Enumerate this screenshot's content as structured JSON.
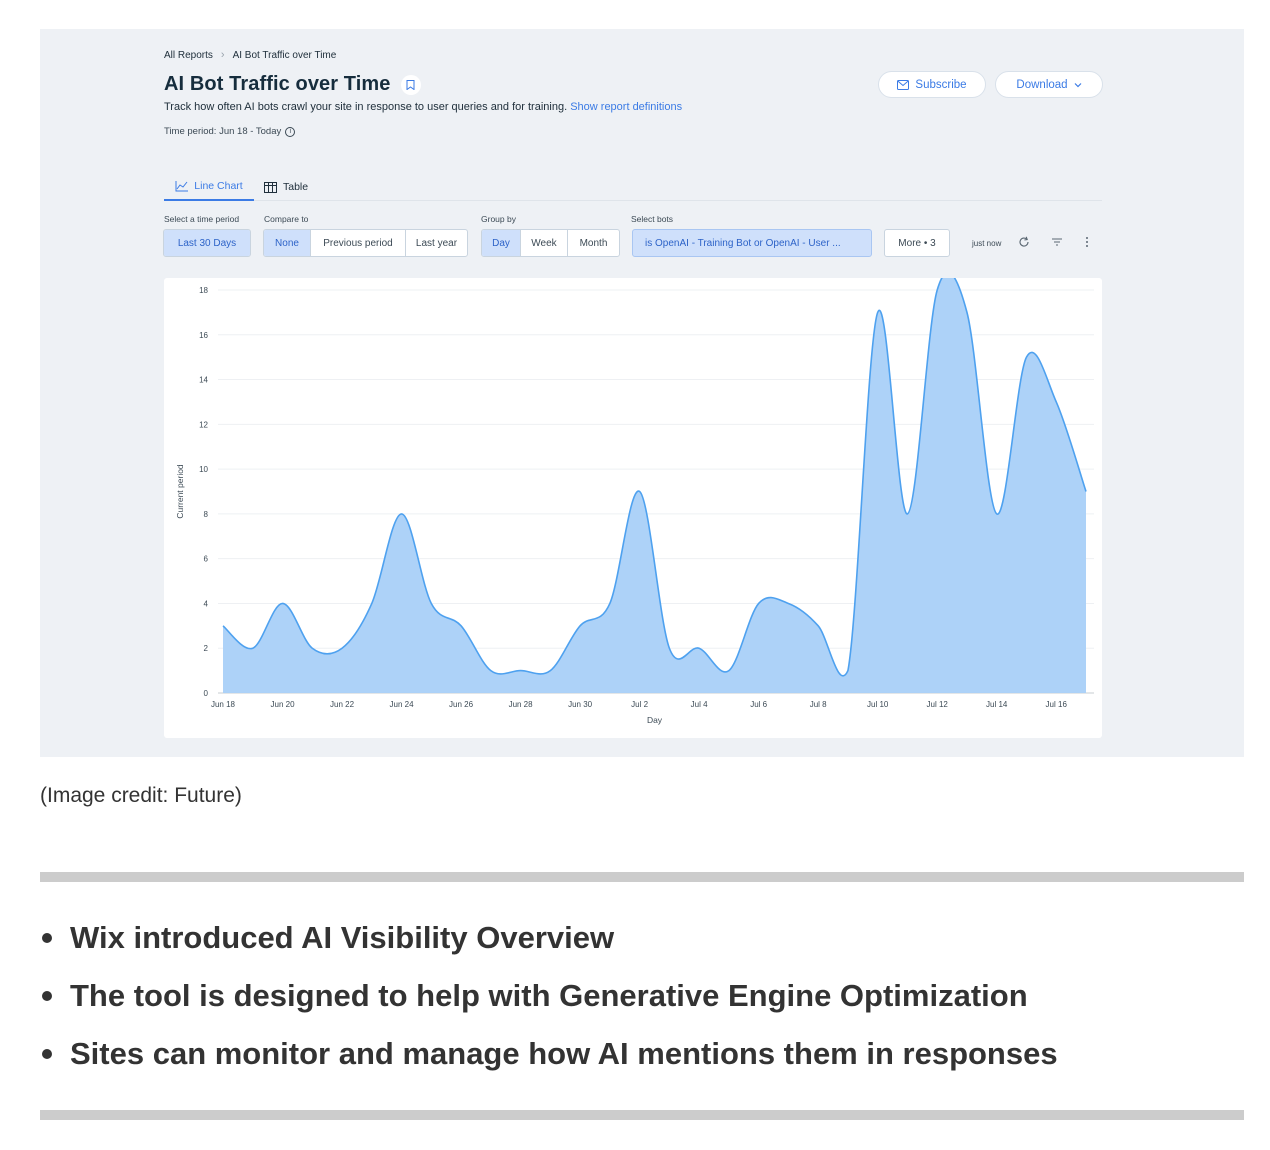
{
  "breadcrumb": {
    "root": "All Reports",
    "current": "AI Bot Traffic over Time"
  },
  "header": {
    "title": "AI Bot Traffic over Time",
    "description": "Track how often AI bots crawl your site in response to user queries and for training.",
    "definitions_link": "Show report definitions",
    "time_period": "Time period: Jun 18 - Today",
    "subscribe_label": "Subscribe",
    "download_label": "Download"
  },
  "tabs": [
    {
      "label": "Line Chart"
    },
    {
      "label": "Table"
    }
  ],
  "filters": {
    "time_period": {
      "label": "Select a time period",
      "value": "Last 30 Days"
    },
    "compare": {
      "label": "Compare to",
      "options": [
        "None",
        "Previous period",
        "Last year"
      ]
    },
    "group_by": {
      "label": "Group by",
      "options": [
        "Day",
        "Week",
        "Month"
      ]
    },
    "bots": {
      "label": "Select bots",
      "value": "is OpenAI - Training Bot or OpenAI - User ..."
    },
    "more": "More • 3",
    "updated": "just now"
  },
  "colors": {
    "accent": "#3b7be5",
    "area_fill": "#a9d0f8",
    "area_line": "#4ea1ef",
    "panel_bg": "#eef1f5"
  },
  "chart_data": {
    "type": "area",
    "xlabel": "Day",
    "ylabel": "Current period",
    "ylim": [
      0,
      18
    ],
    "yticks": [
      0,
      2,
      4,
      6,
      8,
      10,
      12,
      14,
      16,
      18
    ],
    "xticks": [
      "Jun 18",
      "Jun 20",
      "Jun 22",
      "Jun 24",
      "Jun 26",
      "Jun 28",
      "Jun 30",
      "Jul 2",
      "Jul 4",
      "Jul 6",
      "Jul 8",
      "Jul 10",
      "Jul 12",
      "Jul 14",
      "Jul 16"
    ],
    "x": [
      "Jun 18",
      "Jun 19",
      "Jun 20",
      "Jun 21",
      "Jun 22",
      "Jun 23",
      "Jun 24",
      "Jun 25",
      "Jun 26",
      "Jun 27",
      "Jun 28",
      "Jun 29",
      "Jun 30",
      "Jul 1",
      "Jul 2",
      "Jul 3",
      "Jul 4",
      "Jul 5",
      "Jul 6",
      "Jul 7",
      "Jul 8",
      "Jul 9",
      "Jul 10",
      "Jul 11",
      "Jul 12",
      "Jul 13",
      "Jul 14",
      "Jul 15",
      "Jul 16",
      "Jul 17"
    ],
    "series": [
      {
        "values": [
          3,
          2,
          4,
          2,
          2,
          4,
          8,
          4,
          3,
          1,
          1,
          1,
          3,
          4,
          9,
          2,
          2,
          1,
          4,
          4,
          3,
          1,
          17,
          8,
          18,
          17,
          8,
          15,
          13,
          9
        ]
      }
    ],
    "grid": true,
    "legend": "none"
  },
  "caption": "(Image credit: Future)",
  "bullets": [
    "Wix introduced AI Visibility Overview",
    "The tool is designed to help with Generative Engine Optimization",
    "Sites can monitor and manage how AI mentions them in responses"
  ]
}
